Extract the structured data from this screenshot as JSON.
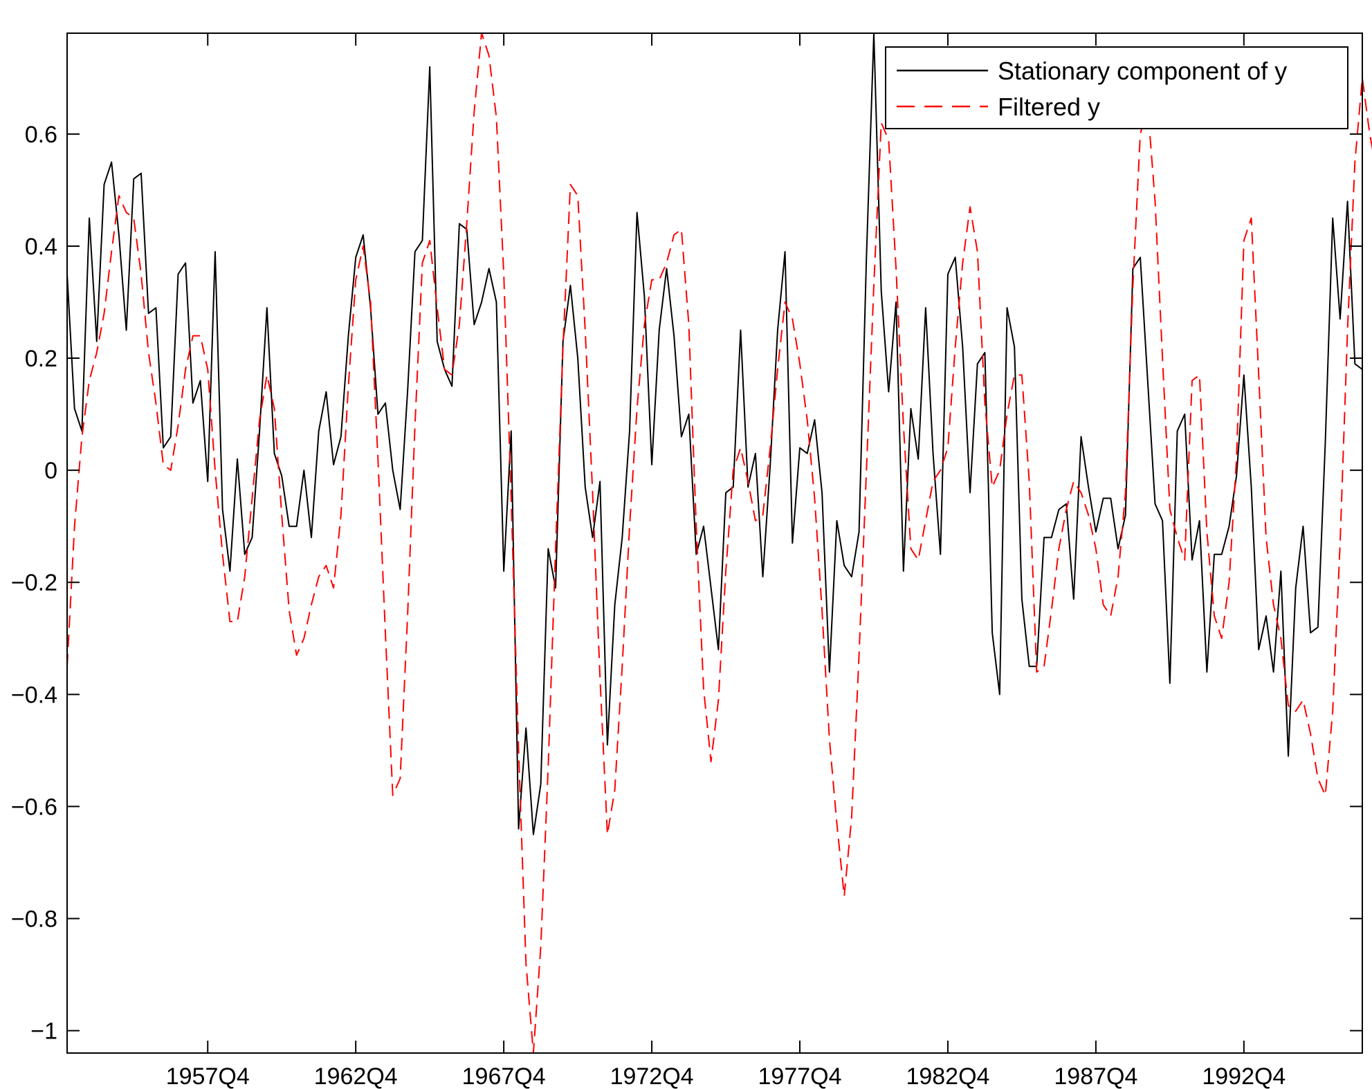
{
  "chart_data": {
    "type": "line",
    "title": "",
    "xlabel": "",
    "ylabel": "",
    "x_start": "1953Q1",
    "frequency": "quarterly",
    "x_tick_labels": [
      "1957Q4",
      "1962Q4",
      "1967Q4",
      "1972Q4",
      "1977Q4",
      "1982Q4",
      "1987Q4",
      "1992Q4"
    ],
    "y_ticks": [
      0.6,
      0.4,
      0.2,
      0,
      -0.2,
      -0.4,
      -0.6,
      -0.8,
      -1
    ],
    "y_tick_labels": [
      "0.6",
      "0.4",
      "0.2",
      "0",
      "−0.2",
      "−0.4",
      "−0.6",
      "−0.8",
      "−1"
    ],
    "ylim": [
      -1.04,
      0.78
    ],
    "grid": false,
    "legend_position": "top-right",
    "series": [
      {
        "name": "Stationary component of y",
        "color": "#000000",
        "style": "solid",
        "values": [
          0.35,
          0.11,
          0.07,
          0.45,
          0.23,
          0.51,
          0.55,
          0.42,
          0.25,
          0.52,
          0.53,
          0.28,
          0.29,
          0.04,
          0.06,
          0.35,
          0.37,
          0.12,
          0.16,
          -0.02,
          0.39,
          -0.07,
          -0.18,
          0.02,
          -0.15,
          -0.12,
          0.07,
          0.29,
          0.03,
          -0.01,
          -0.1,
          -0.1,
          0.0,
          -0.12,
          0.07,
          0.14,
          0.01,
          0.06,
          0.24,
          0.38,
          0.42,
          0.29,
          0.1,
          0.12,
          0.0,
          -0.07,
          0.14,
          0.39,
          0.41,
          0.72,
          0.23,
          0.18,
          0.15,
          0.44,
          0.43,
          0.26,
          0.3,
          0.36,
          0.3,
          -0.18,
          0.07,
          -0.64,
          -0.46,
          -0.65,
          -0.56,
          -0.14,
          -0.21,
          0.23,
          0.33,
          0.2,
          -0.03,
          -0.12,
          -0.02,
          -0.49,
          -0.24,
          -0.12,
          0.07,
          0.46,
          0.31,
          0.01,
          0.25,
          0.36,
          0.24,
          0.06,
          0.1,
          -0.15,
          -0.1,
          -0.21,
          -0.32,
          -0.04,
          -0.03,
          0.25,
          -0.03,
          0.03,
          -0.19,
          0.01,
          0.25,
          0.39,
          -0.13,
          0.04,
          0.03,
          0.09,
          -0.04,
          -0.36,
          -0.09,
          -0.17,
          -0.19,
          -0.11,
          0.38,
          0.78,
          0.32,
          0.14,
          0.3,
          -0.18,
          0.11,
          0.02,
          0.29,
          0.03,
          -0.15,
          0.35,
          0.38,
          0.22,
          -0.04,
          0.19,
          0.21,
          -0.29,
          -0.4,
          0.29,
          0.22,
          -0.23,
          -0.35,
          -0.35,
          -0.12,
          -0.12,
          -0.07,
          -0.06,
          -0.23,
          0.06,
          -0.03,
          -0.11,
          -0.05,
          -0.05,
          -0.14,
          -0.08,
          0.36,
          0.38,
          0.16,
          -0.06,
          -0.09,
          -0.38,
          0.07,
          0.1,
          -0.16,
          -0.09,
          -0.36,
          -0.15,
          -0.15,
          -0.1,
          -0.01,
          0.17,
          -0.03,
          -0.32,
          -0.26,
          -0.36,
          -0.18,
          -0.51,
          -0.21,
          -0.1,
          -0.29,
          -0.28,
          0.05,
          0.45,
          0.27,
          0.48,
          0.19,
          0.18
        ]
      },
      {
        "name": "Filtered y",
        "color": "#ff0000",
        "style": "dashed",
        "values": [
          -0.35,
          -0.1,
          0.06,
          0.16,
          0.21,
          0.28,
          0.39,
          0.49,
          0.46,
          0.45,
          0.35,
          0.21,
          0.12,
          0.01,
          0.0,
          0.08,
          0.18,
          0.24,
          0.24,
          0.18,
          0.0,
          -0.15,
          -0.27,
          -0.27,
          -0.19,
          -0.05,
          0.09,
          0.17,
          0.11,
          -0.08,
          -0.25,
          -0.33,
          -0.3,
          -0.24,
          -0.19,
          -0.17,
          -0.21,
          -0.08,
          0.15,
          0.34,
          0.4,
          0.3,
          0.02,
          -0.29,
          -0.58,
          -0.55,
          -0.26,
          0.08,
          0.37,
          0.41,
          0.29,
          0.18,
          0.17,
          0.26,
          0.44,
          0.64,
          0.78,
          0.74,
          0.63,
          0.35,
          -0.05,
          -0.5,
          -0.88,
          -1.04,
          -0.85,
          -0.53,
          -0.14,
          0.22,
          0.51,
          0.49,
          0.25,
          -0.04,
          -0.37,
          -0.65,
          -0.57,
          -0.35,
          -0.1,
          0.11,
          0.26,
          0.34,
          0.34,
          0.37,
          0.42,
          0.43,
          0.26,
          -0.1,
          -0.39,
          -0.52,
          -0.41,
          -0.18,
          0.0,
          0.04,
          -0.02,
          -0.09,
          -0.08,
          0.04,
          0.18,
          0.3,
          0.27,
          0.19,
          0.09,
          -0.05,
          -0.25,
          -0.48,
          -0.63,
          -0.76,
          -0.62,
          -0.33,
          0.0,
          0.33,
          0.62,
          0.59,
          0.36,
          0.08,
          -0.14,
          -0.16,
          -0.09,
          -0.02,
          0.0,
          0.04,
          0.22,
          0.37,
          0.47,
          0.39,
          0.12,
          -0.03,
          0.0,
          0.1,
          0.17,
          0.17,
          -0.02,
          -0.36,
          -0.35,
          -0.25,
          -0.14,
          -0.07,
          -0.02,
          -0.04,
          -0.08,
          -0.14,
          -0.24,
          -0.26,
          -0.19,
          -0.04,
          0.33,
          0.6,
          0.65,
          0.48,
          0.2,
          -0.07,
          -0.12,
          -0.16,
          0.16,
          0.17,
          -0.11,
          -0.26,
          -0.3,
          -0.2,
          0.02,
          0.41,
          0.45,
          0.17,
          -0.12,
          -0.24,
          -0.3,
          -0.42,
          -0.43,
          -0.41,
          -0.47,
          -0.55,
          -0.58,
          -0.43,
          -0.13,
          0.25,
          0.55,
          0.7,
          0.6,
          0.53
        ]
      }
    ]
  }
}
